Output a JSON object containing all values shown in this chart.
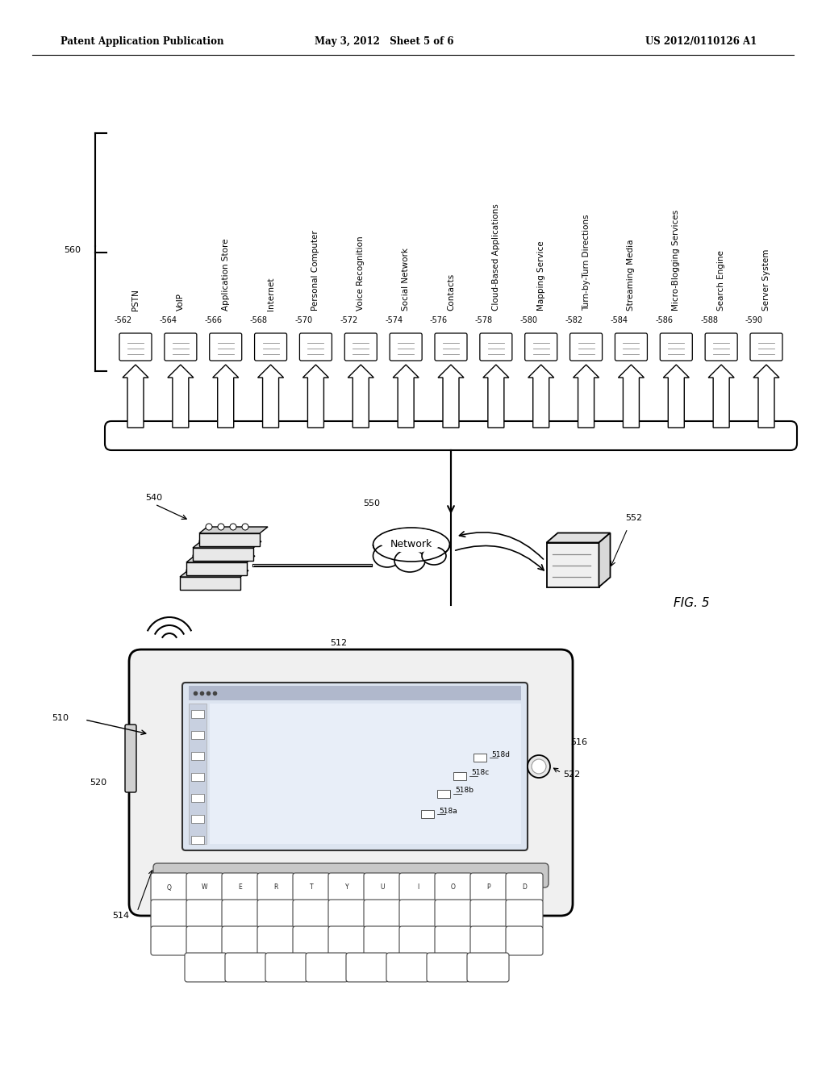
{
  "bg_color": "#ffffff",
  "header_left": "Patent Application Publication",
  "header_center": "May 3, 2012   Sheet 5 of 6",
  "header_right": "US 2012/0110126 A1",
  "fig_label": "FIG. 5",
  "services": [
    {
      "label": "562",
      "name": "PSTN"
    },
    {
      "label": "564",
      "name": "VoIP"
    },
    {
      "label": "566",
      "name": "Application Store"
    },
    {
      "label": "568",
      "name": "Internet"
    },
    {
      "label": "570",
      "name": "Personal Computer"
    },
    {
      "label": "572",
      "name": "Voice Recognition"
    },
    {
      "label": "574",
      "name": "Social Network"
    },
    {
      "label": "576",
      "name": "Contacts"
    },
    {
      "label": "578",
      "name": "Cloud-Based Applications"
    },
    {
      "label": "580",
      "name": "Mapping Service"
    },
    {
      "label": "582",
      "name": "Turn-by-Turn Directions"
    },
    {
      "label": "584",
      "name": "Streaming Media"
    },
    {
      "label": "586",
      "name": "Micro-Blogging Services"
    },
    {
      "label": "588",
      "name": "Search Engine"
    },
    {
      "label": "590",
      "name": "Server System"
    }
  ],
  "lbl_560": "560",
  "lbl_540": "540",
  "lbl_550": "550",
  "lbl_552": "552",
  "lbl_510": "510",
  "lbl_512": "512",
  "lbl_514": "514",
  "lbl_516": "516",
  "lbl_520": "520",
  "lbl_522": "522",
  "icon_labels": [
    "518a",
    "518b",
    "518c",
    "518d"
  ],
  "arrow_color": "#000000",
  "line_color": "#000000",
  "phone_body_color": "#f5f5f5",
  "screen_color": "#e8eef5",
  "key_color": "#ffffff",
  "kb_bg_color": "#e0e0e0"
}
